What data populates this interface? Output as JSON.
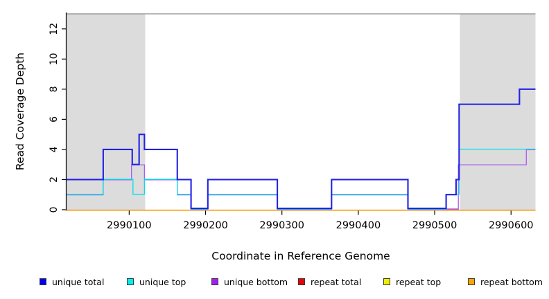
{
  "figure": {
    "x_axis_title": "Coordinate in Reference Genome",
    "y_axis_title": "Read Coverage Depth"
  },
  "chart_data": {
    "type": "line",
    "subtype": "step-coverage",
    "title": "",
    "xlabel": "Coordinate in Reference Genome",
    "ylabel": "Read Coverage Depth",
    "xlim": [
      2990018,
      2990632
    ],
    "ylim": [
      0,
      13
    ],
    "grid": false,
    "x_ticks": [
      2990100,
      2990200,
      2990300,
      2990400,
      2990500,
      2990600
    ],
    "x_tick_labels": [
      "2990100",
      "2990200",
      "2990300",
      "2990400",
      "2990500",
      "2990600"
    ],
    "y_ticks": [
      0,
      2,
      4,
      6,
      8,
      10,
      12
    ],
    "y_tick_labels": [
      "0",
      "2",
      "4",
      "6",
      "8",
      "10",
      "12"
    ],
    "cap_line_value": 13,
    "cap_line_color": "#8a8a8a",
    "shaded_regions": {
      "color": "#dcdcdc",
      "ranges": [
        [
          2990018,
          2990121
        ],
        [
          2990533,
          2990632
        ]
      ]
    },
    "series": [
      {
        "name": "unique total",
        "color": "#2222e6",
        "steps": [
          [
            2990018,
            2
          ],
          [
            2990066,
            4
          ],
          [
            2990104,
            3
          ],
          [
            2990113,
            5
          ],
          [
            2990120,
            4
          ],
          [
            2990163,
            2
          ],
          [
            2990181,
            0
          ],
          [
            2990203,
            2
          ],
          [
            2990294,
            0
          ],
          [
            2990365,
            2
          ],
          [
            2990465,
            0
          ],
          [
            2990515,
            1
          ],
          [
            2990528,
            2
          ],
          [
            2990532,
            7
          ],
          [
            2990611,
            8
          ]
        ]
      },
      {
        "name": "unique top",
        "color": "#00dfe8",
        "steps": [
          [
            2990018,
            1
          ],
          [
            2990066,
            2
          ],
          [
            2990105,
            1
          ],
          [
            2990120,
            2
          ],
          [
            2990163,
            1
          ],
          [
            2990181,
            0
          ],
          [
            2990203,
            1
          ],
          [
            2990294,
            0
          ],
          [
            2990365,
            1
          ],
          [
            2990465,
            0
          ],
          [
            2990515,
            1
          ],
          [
            2990532,
            4
          ]
        ]
      },
      {
        "name": "unique bottom",
        "color": "#ab5cf0",
        "steps": [
          [
            2990018,
            1
          ],
          [
            2990066,
            2
          ],
          [
            2990103,
            3
          ],
          [
            2990120,
            2
          ],
          [
            2990163,
            1
          ],
          [
            2990181,
            0
          ],
          [
            2990203,
            1
          ],
          [
            2990294,
            0
          ],
          [
            2990365,
            1
          ],
          [
            2990465,
            0
          ],
          [
            2990531,
            3
          ],
          [
            2990620,
            4
          ]
        ]
      },
      {
        "name": "repeat total",
        "color": "#e03040",
        "steps": [
          [
            2990018,
            0
          ]
        ]
      },
      {
        "name": "repeat top",
        "color": "#f2f200",
        "steps": [
          [
            2990018,
            0
          ]
        ]
      },
      {
        "name": "repeat bottom",
        "color": "#ff9f0a",
        "steps": [
          [
            2990018,
            0
          ]
        ]
      }
    ],
    "annotations": {
      "red_zero_visible_segment": [
        2990515,
        2990531
      ]
    },
    "legend": {
      "position": "bottom",
      "entries": [
        {
          "label": "unique total",
          "color": "#0000ee"
        },
        {
          "label": "unique top",
          "color": "#00eeee"
        },
        {
          "label": "unique bottom",
          "color": "#a020f0"
        },
        {
          "label": "repeat total",
          "color": "#ee0000"
        },
        {
          "label": "repeat top",
          "color": "#eeee00"
        },
        {
          "label": "repeat bottom",
          "color": "#ffa500"
        }
      ]
    }
  }
}
